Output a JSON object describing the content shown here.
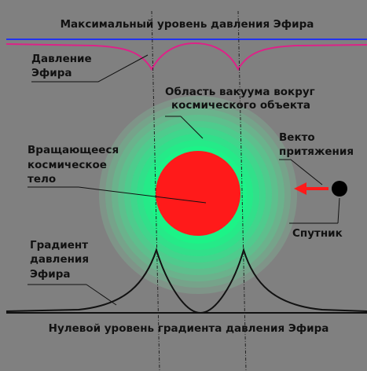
{
  "labels": {
    "top_level": "Максимальный уровень давления Эфира",
    "pressure": [
      "Давление",
      "Эфира"
    ],
    "vacuum_area": [
      "Область вакуума вокруг",
      "космического объекта"
    ],
    "body": [
      "Вращающееся",
      "космическое",
      "тело"
    ],
    "attraction": [
      "Векто",
      "притяжения"
    ],
    "satellite": "Спутник",
    "gradient": [
      "Градиент",
      "давления",
      "Эфира"
    ],
    "zero_level": "Нулевой уровень градиента давления Эфира"
  }
}
